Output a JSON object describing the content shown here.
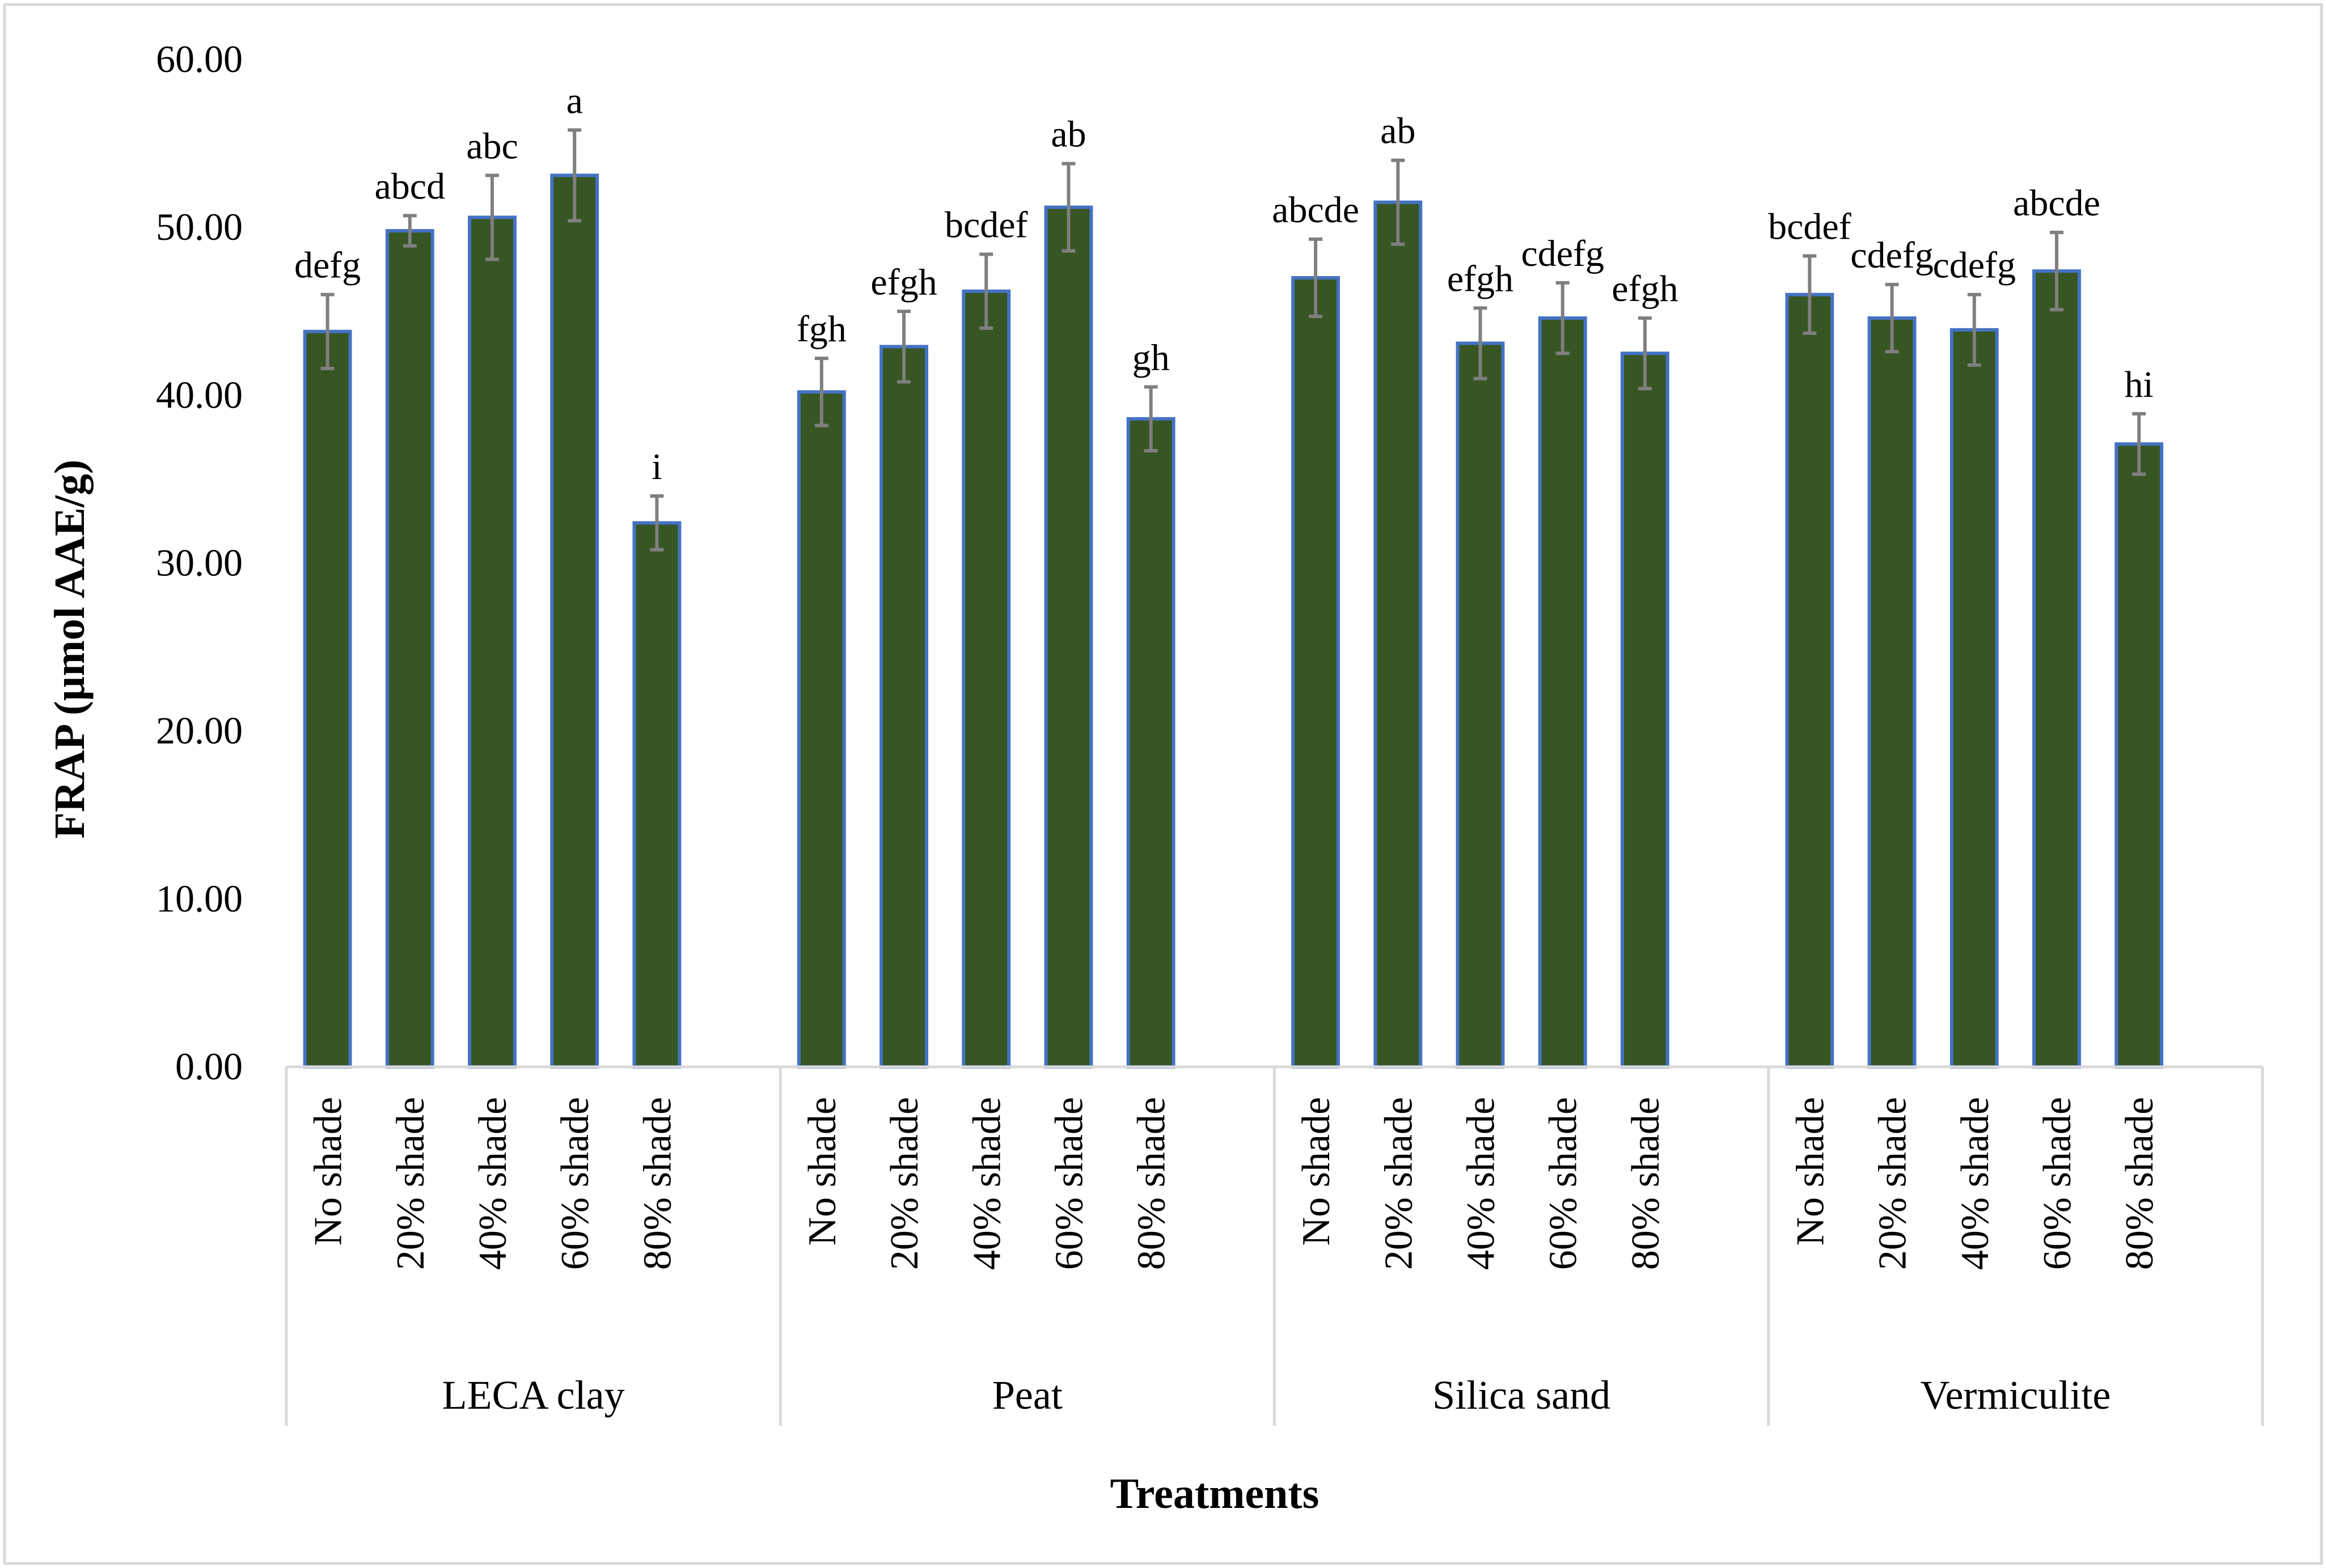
{
  "chart_data": {
    "type": "bar",
    "title": "",
    "xlabel": "Treatments",
    "ylabel": "FRAP (µmol AAE/g)",
    "ylim": [
      0,
      60
    ],
    "yticks": [
      "0.00",
      "10.00",
      "20.00",
      "30.00",
      "40.00",
      "50.00",
      "60.00"
    ],
    "grid": false,
    "legend": "none",
    "colors": {
      "bar_fill": "#375623",
      "bar_edge": "#4472C4",
      "error_bar": "#7f7f7f",
      "axis": "#d9d9d9",
      "frame": "#d9d9d9"
    },
    "groups": [
      {
        "name": "LECA clay",
        "categories": [
          "No shade",
          "20% shade",
          "40% shade",
          "60% shade",
          "80% shade"
        ],
        "values": [
          43.8,
          49.8,
          50.6,
          53.1,
          32.4
        ],
        "errors": [
          2.2,
          0.9,
          2.5,
          2.7,
          1.6
        ],
        "letters": [
          "defg",
          "abcd",
          "abc",
          "a",
          "i"
        ]
      },
      {
        "name": "Peat",
        "categories": [
          "No shade",
          "20% shade",
          "40% shade",
          "60% shade",
          "80% shade"
        ],
        "values": [
          40.2,
          42.9,
          46.2,
          51.2,
          38.6
        ],
        "errors": [
          2.0,
          2.1,
          2.2,
          2.6,
          1.9
        ],
        "letters": [
          "fgh",
          "efgh",
          "bcdef",
          "ab",
          "gh"
        ]
      },
      {
        "name": "Silica sand",
        "categories": [
          "No shade",
          "20% shade",
          "40% shade",
          "60% shade",
          "80% shade"
        ],
        "values": [
          47.0,
          51.5,
          43.1,
          44.6,
          42.5
        ],
        "errors": [
          2.3,
          2.5,
          2.1,
          2.1,
          2.1
        ],
        "letters": [
          "abcde",
          "ab",
          "efgh",
          "cdefg",
          "efgh"
        ]
      },
      {
        "name": "Vermiculite",
        "categories": [
          "No shade",
          "20% shade",
          "40% shade",
          "60% shade",
          "80% shade"
        ],
        "values": [
          46.0,
          44.6,
          43.9,
          47.4,
          37.1
        ],
        "errors": [
          2.3,
          2.0,
          2.1,
          2.3,
          1.8
        ],
        "letters": [
          "bcdef",
          "cdefg",
          "cdefg",
          "abcde",
          "hi"
        ]
      }
    ]
  }
}
